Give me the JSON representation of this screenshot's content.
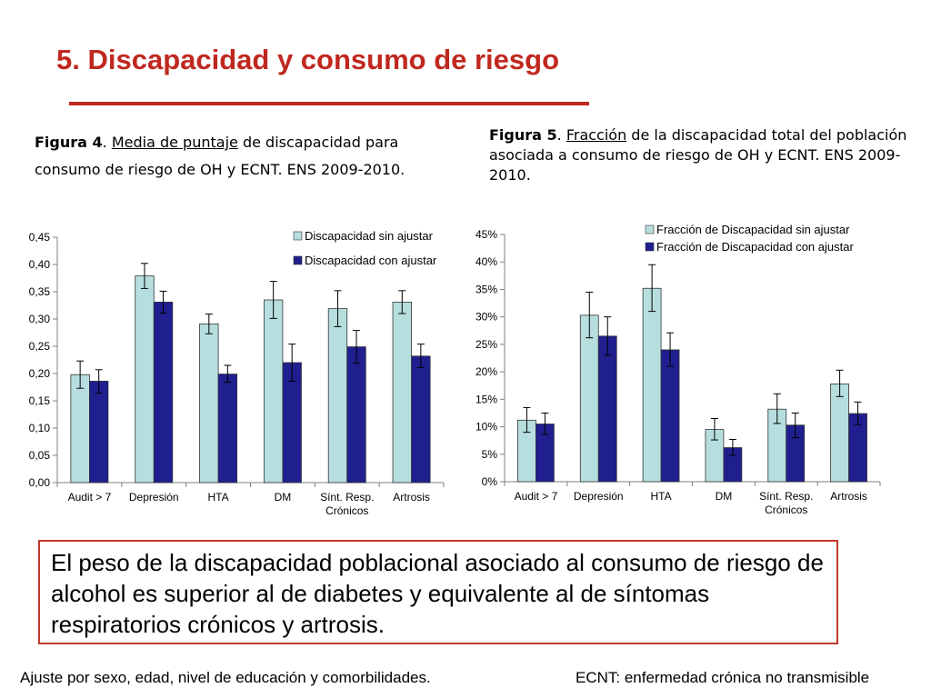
{
  "title": "5. Discapacidad y consumo de riesgo",
  "fig4": {
    "label": "Figura 4",
    "sep": ". ",
    "link": "Media de puntaje",
    "rest": " de discapacidad para consumo de riesgo de OH y ECNT. ENS 2009-2010."
  },
  "fig5": {
    "label": "Figura 5",
    "sep": ". ",
    "link": "Fracción",
    "rest": " de la discapacidad total del población asociada a consumo de riesgo de OH y ECNT. ENS 2009-2010."
  },
  "chart_data": [
    {
      "type": "bar",
      "categories": [
        "Audit > 7",
        "Depresión",
        "HTA",
        "DM",
        "Sínt. Resp. Crónicos",
        "Artrosis"
      ],
      "series": [
        {
          "name": "Discapacidad sin ajustar",
          "color": "#b7dede",
          "values": [
            0.198,
            0.379,
            0.291,
            0.335,
            0.319,
            0.331
          ],
          "err_low": [
            0.173,
            0.356,
            0.273,
            0.301,
            0.286,
            0.31
          ],
          "err_high": [
            0.223,
            0.402,
            0.309,
            0.369,
            0.352,
            0.352
          ]
        },
        {
          "name": "Discapacidad con ajustar",
          "color": "#1f1f8f",
          "values": [
            0.186,
            0.331,
            0.199,
            0.22,
            0.249,
            0.232
          ],
          "err_low": [
            0.164,
            0.311,
            0.184,
            0.186,
            0.219,
            0.211
          ],
          "err_high": [
            0.207,
            0.351,
            0.215,
            0.254,
            0.279,
            0.254
          ]
        }
      ],
      "ylim": [
        0,
        0.45
      ],
      "yticks": [
        "0,00",
        "0,05",
        "0,10",
        "0,15",
        "0,20",
        "0,25",
        "0,30",
        "0,35",
        "0,40",
        "0,45"
      ],
      "grid": false,
      "legend": "top-right"
    },
    {
      "type": "bar",
      "categories": [
        "Audit > 7",
        "Depresión",
        "HTA",
        "DM",
        "Sínt. Resp. Crónicos",
        "Artrosis"
      ],
      "series": [
        {
          "name": "Fracción de Discapacidad sin ajustar",
          "color": "#b7dede",
          "values": [
            11.2,
            30.3,
            35.2,
            9.5,
            13.2,
            17.8
          ],
          "err_low": [
            9.0,
            26.2,
            31.0,
            7.6,
            10.6,
            15.5
          ],
          "err_high": [
            13.5,
            34.5,
            39.5,
            11.5,
            16.0,
            20.3
          ]
        },
        {
          "name": "Fracción de Discapacidad con ajustar",
          "color": "#1f1f8f",
          "values": [
            10.5,
            26.5,
            24.0,
            6.2,
            10.3,
            12.4
          ],
          "err_low": [
            8.6,
            23.0,
            21.0,
            4.8,
            8.0,
            10.4
          ],
          "err_high": [
            12.5,
            30.0,
            27.1,
            7.7,
            12.5,
            14.5
          ]
        }
      ],
      "ylim": [
        0,
        45
      ],
      "yticks": [
        "0%",
        "5%",
        "10%",
        "15%",
        "20%",
        "25%",
        "30%",
        "35%",
        "40%",
        "45%"
      ],
      "grid": false,
      "legend": "top-right"
    }
  ],
  "note": "El peso de la discapacidad poblacional asociado al consumo de riesgo de alcohol es superior al de diabetes y equivalente al de síntomas respiratorios crónicos y artrosis.",
  "footnote_left": "Ajuste por sexo, edad, nivel de educación y comorbilidades.",
  "footnote_right": "ECNT: enfermedad crónica no transmisible"
}
